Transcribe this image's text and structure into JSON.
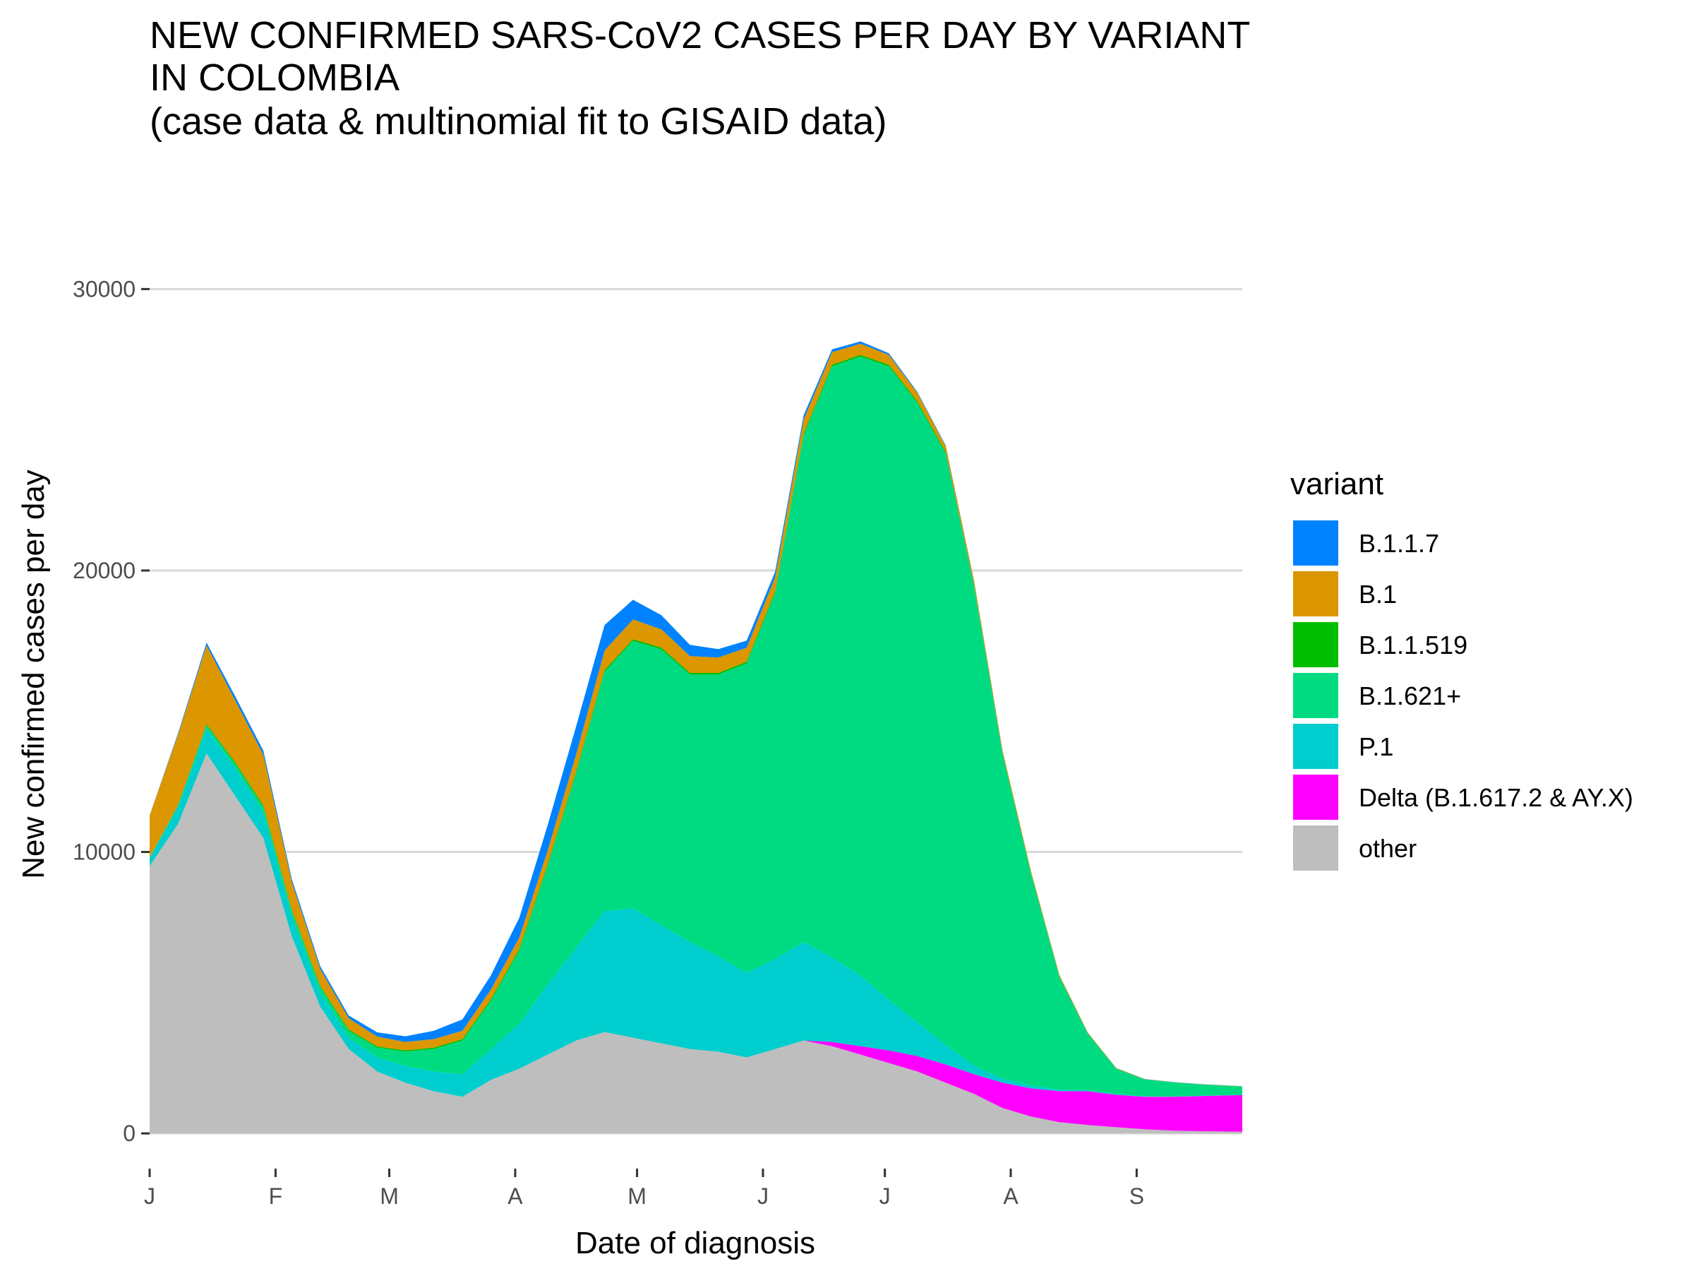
{
  "title_lines": [
    "NEW CONFIRMED SARS-CoV2 CASES PER DAY BY VARIANT",
    "IN COLOMBIA",
    "(case data & multinomial fit to GISAID data)"
  ],
  "chart_data": {
    "type": "area",
    "stacked": true,
    "title": "NEW CONFIRMED SARS-CoV2 CASES PER DAY BY VARIANT IN COLOMBIA (case data & multinomial fit to GISAID data)",
    "xlabel": "Date of diagnosis",
    "ylabel": "New confirmed cases per day",
    "x_ticks": [
      {
        "label": "J",
        "date": "2021-01-01"
      },
      {
        "label": "F",
        "date": "2021-02-01"
      },
      {
        "label": "M",
        "date": "2021-03-01"
      },
      {
        "label": "A",
        "date": "2021-04-01"
      },
      {
        "label": "M",
        "date": "2021-05-01"
      },
      {
        "label": "J",
        "date": "2021-06-01"
      },
      {
        "label": "J",
        "date": "2021-07-01"
      },
      {
        "label": "A",
        "date": "2021-08-01"
      },
      {
        "label": "S",
        "date": "2021-09-01"
      }
    ],
    "y_ticks": [
      0,
      10000,
      20000,
      30000
    ],
    "xlim": [
      "2021-01-01",
      "2021-09-27"
    ],
    "ylim": [
      -1000,
      34500
    ],
    "grid": "horizontal major",
    "legend_title": "variant",
    "legend_position": "right",
    "x": [
      "2021-01-01",
      "2021-01-08",
      "2021-01-15",
      "2021-01-22",
      "2021-01-29",
      "2021-02-05",
      "2021-02-12",
      "2021-02-19",
      "2021-02-26",
      "2021-03-05",
      "2021-03-12",
      "2021-03-19",
      "2021-03-26",
      "2021-04-02",
      "2021-04-09",
      "2021-04-16",
      "2021-04-23",
      "2021-04-30",
      "2021-05-07",
      "2021-05-14",
      "2021-05-21",
      "2021-05-28",
      "2021-06-04",
      "2021-06-11",
      "2021-06-18",
      "2021-06-25",
      "2021-07-02",
      "2021-07-09",
      "2021-07-16",
      "2021-07-23",
      "2021-07-30",
      "2021-08-06",
      "2021-08-13",
      "2021-08-20",
      "2021-08-27",
      "2021-09-03",
      "2021-09-10",
      "2021-09-17",
      "2021-09-27"
    ],
    "series": [
      {
        "name": "other",
        "color": "#BEBEBE",
        "values": [
          9500,
          11000,
          13500,
          12000,
          10500,
          7000,
          4500,
          3000,
          2200,
          1800,
          1500,
          1300,
          1900,
          2300,
          2800,
          3300,
          3600,
          3400,
          3200,
          3000,
          2900,
          2700,
          3000,
          3300,
          3100,
          2800,
          2500,
          2200,
          1800,
          1400,
          900,
          600,
          400,
          300,
          220,
          150,
          100,
          80,
          60
        ]
      },
      {
        "name": "Delta (B.1.617.2 & AY.X)",
        "color": "#FF00FF",
        "values": [
          0,
          0,
          0,
          0,
          0,
          0,
          0,
          0,
          0,
          0,
          0,
          0,
          0,
          0,
          0,
          0,
          0,
          0,
          0,
          0,
          0,
          0,
          0,
          0,
          150,
          300,
          450,
          550,
          650,
          700,
          900,
          1000,
          1100,
          1200,
          1150,
          1150,
          1200,
          1250,
          1300
        ]
      },
      {
        "name": "P.1",
        "color": "#00CDCD",
        "values": [
          300,
          600,
          900,
          1000,
          900,
          700,
          500,
          400,
          500,
          600,
          700,
          800,
          1100,
          1600,
          2500,
          3300,
          4300,
          4600,
          4200,
          3800,
          3400,
          3000,
          3200,
          3500,
          3000,
          2500,
          1800,
          1200,
          700,
          300,
          150,
          100,
          50,
          30,
          20,
          15,
          10,
          8,
          5
        ]
      },
      {
        "name": "B.1.621+",
        "color": "#00DB82",
        "values": [
          0,
          50,
          100,
          150,
          200,
          200,
          200,
          250,
          350,
          500,
          800,
          1200,
          1700,
          2600,
          4200,
          6200,
          8500,
          9500,
          9800,
          9500,
          10000,
          11000,
          13000,
          18000,
          21000,
          22000,
          22500,
          22000,
          21000,
          17000,
          11500,
          7500,
          4000,
          2000,
          900,
          600,
          500,
          400,
          300
        ]
      },
      {
        "name": "B.1.1.519",
        "color": "#00BE00",
        "values": [
          0,
          20,
          40,
          50,
          50,
          40,
          40,
          40,
          40,
          50,
          50,
          50,
          60,
          60,
          60,
          60,
          60,
          60,
          60,
          60,
          60,
          60,
          60,
          60,
          60,
          60,
          60,
          60,
          60,
          50,
          40,
          30,
          20,
          15,
          10,
          5,
          5,
          5,
          5
        ]
      },
      {
        "name": "B.1",
        "color": "#DB9600",
        "values": [
          1500,
          2500,
          2800,
          2200,
          1800,
          1000,
          600,
          400,
          350,
          300,
          300,
          300,
          350,
          400,
          500,
          600,
          700,
          700,
          650,
          600,
          550,
          500,
          500,
          500,
          450,
          400,
          350,
          300,
          200,
          150,
          100,
          80,
          50,
          30,
          20,
          10,
          5,
          5,
          5
        ]
      },
      {
        "name": "B.1.1.7",
        "color": "#0082FF",
        "values": [
          0,
          50,
          100,
          150,
          150,
          100,
          100,
          100,
          150,
          200,
          300,
          400,
          500,
          700,
          900,
          1000,
          900,
          700,
          500,
          400,
          300,
          250,
          200,
          150,
          100,
          80,
          60,
          40,
          30,
          20,
          10,
          5,
          5,
          5,
          5,
          5,
          5,
          5,
          5
        ]
      }
    ],
    "legend": [
      {
        "label": "B.1.1.7",
        "color": "#0082FF"
      },
      {
        "label": "B.1",
        "color": "#DB9600"
      },
      {
        "label": "B.1.1.519",
        "color": "#00BE00"
      },
      {
        "label": "B.1.621+",
        "color": "#00DB82"
      },
      {
        "label": "P.1",
        "color": "#00CDCD"
      },
      {
        "label": "Delta (B.1.617.2 & AY.X)",
        "color": "#FF00FF"
      },
      {
        "label": "other",
        "color": "#BEBEBE"
      }
    ]
  }
}
